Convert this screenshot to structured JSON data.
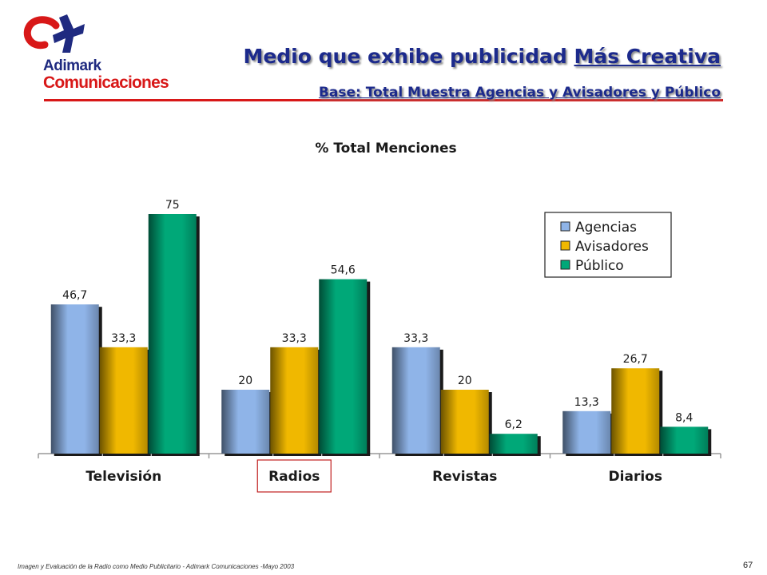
{
  "logo": {
    "line1": "Adimark",
    "line2": "Comunicaciones"
  },
  "header": {
    "title_prefix": "Medio que exhibe publicidad ",
    "title_underlined": "Más Creativa",
    "subtitle": "Base: Total Muestra Agencias y Avisadores y Público"
  },
  "chart_data": {
    "type": "bar",
    "title": "% Total Menciones",
    "categories": [
      "Televisión",
      "Radios",
      "Revistas",
      "Diarios"
    ],
    "highlighted_category": "Radios",
    "series": [
      {
        "name": "Agencias",
        "values": [
          46.7,
          20,
          33.3,
          13.3
        ],
        "labels": [
          "46,7",
          "20",
          "33,3",
          "13,3"
        ],
        "color": "#8fb4e8"
      },
      {
        "name": "Avisadores",
        "values": [
          33.3,
          33.3,
          20,
          26.7
        ],
        "labels": [
          "33,3",
          "33,3",
          "20",
          "26,7"
        ],
        "color": "#f0b800"
      },
      {
        "name": "Público",
        "values": [
          75,
          54.6,
          6.2,
          8.4
        ],
        "labels": [
          "75",
          "54,6",
          "6,2",
          "8,4"
        ],
        "color": "#00a878"
      }
    ],
    "ylim": [
      0,
      80
    ],
    "legend": "top-right",
    "grid": false
  },
  "footer": {
    "note": "Imagen y Evaluación de la Radio como Medio Publicitario - Adimark Comunicaciones -Mayo 2003",
    "page_number": "67"
  }
}
